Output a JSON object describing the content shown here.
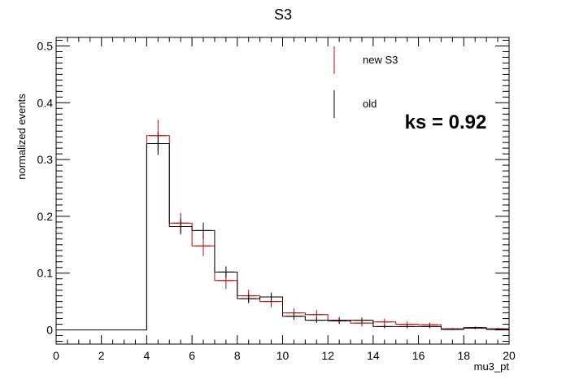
{
  "chart_data": {
    "type": "histogram",
    "title": "S3",
    "xlabel": "mu3_pt",
    "ylabel": "normalized events",
    "xlim": [
      0,
      20
    ],
    "ylim": [
      -0.025,
      0.515
    ],
    "x_ticks": [
      "0",
      "2",
      "4",
      "6",
      "8",
      "10",
      "12",
      "14",
      "16",
      "18",
      "20"
    ],
    "y_ticks": [
      "0",
      "0.1",
      "0.2",
      "0.3",
      "0.4",
      "0.5"
    ],
    "bin_edges": [
      0,
      1,
      2,
      3,
      4,
      5,
      6,
      7,
      8,
      9,
      10,
      11,
      12,
      13,
      14,
      15,
      16,
      17,
      18,
      19,
      20
    ],
    "series": [
      {
        "name": "new S3",
        "color": "#cc0000",
        "values": [
          0,
          0,
          0,
          0,
          0.342,
          0.188,
          0.148,
          0.087,
          0.06,
          0.05,
          0.03,
          0.027,
          0.017,
          0.012,
          0.014,
          0.01,
          0.009,
          0.002,
          0.003,
          0.002
        ],
        "errors": [
          0,
          0,
          0,
          0,
          0.028,
          0.018,
          0.018,
          0.015,
          0.011,
          0.01,
          0.008,
          0.008,
          0.006,
          0.006,
          0.006,
          0.005,
          0.004,
          0.002,
          0.002,
          0.002
        ]
      },
      {
        "name": "old",
        "color": "#000000",
        "values": [
          0,
          0,
          0,
          0,
          0.328,
          0.182,
          0.175,
          0.102,
          0.055,
          0.058,
          0.024,
          0.017,
          0.016,
          0.017,
          0.006,
          0.006,
          0.006,
          0.001,
          0.004,
          0.001
        ],
        "errors": [
          0,
          0,
          0,
          0,
          0.02,
          0.014,
          0.014,
          0.01,
          0.008,
          0.008,
          0.006,
          0.005,
          0.005,
          0.005,
          0.003,
          0.003,
          0.003,
          0.001,
          0.002,
          0.001
        ]
      }
    ],
    "legend": {
      "placement": "top-right",
      "entries": [
        "new S3",
        "old"
      ]
    },
    "annotation": "ks = 0.92"
  }
}
